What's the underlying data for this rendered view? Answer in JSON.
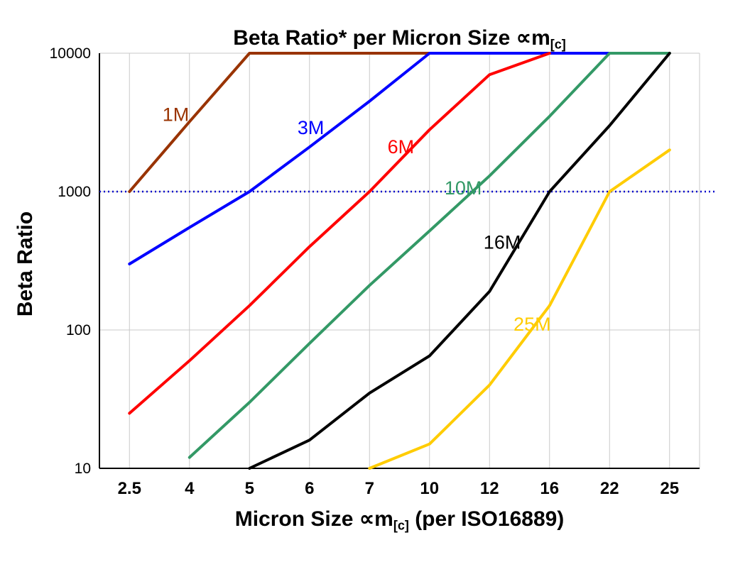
{
  "title": {
    "text_prefix": "Beta Ratio* per Micron Size ",
    "micron_symbol": "∝m",
    "subscript": "[c]"
  },
  "y_axis": {
    "title": "Beta Ratio"
  },
  "x_axis": {
    "title_prefix": "Micron Size ",
    "micron_symbol": "∝m",
    "subscript": "[c]",
    "title_suffix": " (per ISO16889)"
  },
  "chart_data": {
    "type": "line",
    "title": "Beta Ratio* per Micron Size ∝m[c]",
    "xlabel": "Micron Size ∝m[c] (per ISO16889)",
    "ylabel": "Beta Ratio",
    "x_scale": "categorical",
    "y_scale": "log10",
    "ylim": [
      10,
      10000
    ],
    "y_ticks": [
      10,
      100,
      1000,
      10000
    ],
    "grid": true,
    "reference_line": {
      "value": 1000,
      "color": "#0000CC",
      "style": "dotted"
    },
    "categories": [
      "2.5",
      "4",
      "5",
      "6",
      "7",
      "10",
      "12",
      "16",
      "22",
      "25"
    ],
    "series": [
      {
        "name": "1M",
        "color": "#993300",
        "values": [
          1000,
          3200,
          10000,
          10000,
          10000,
          10000,
          null,
          null,
          null,
          null
        ],
        "label": {
          "text": "1M",
          "xi": 0.55,
          "y": 3600
        }
      },
      {
        "name": "3M",
        "color": "#0000FF",
        "values": [
          300,
          550,
          1000,
          2100,
          4500,
          10000,
          10000,
          10000,
          10000,
          null
        ],
        "label": {
          "text": "3M",
          "xi": 2.8,
          "y": 2900
        }
      },
      {
        "name": "6M",
        "color": "#FF0000",
        "values": [
          25,
          60,
          150,
          400,
          1000,
          2800,
          7000,
          10000,
          null,
          null
        ],
        "label": {
          "text": "6M",
          "xi": 4.3,
          "y": 2100
        }
      },
      {
        "name": "10M",
        "color": "#339966",
        "values": [
          null,
          12,
          30,
          80,
          210,
          520,
          1300,
          3500,
          10000,
          10000
        ],
        "label": {
          "text": "10M",
          "xi": 5.25,
          "y": 1060
        }
      },
      {
        "name": "16M",
        "color": "#000000",
        "values": [
          null,
          null,
          10,
          16,
          35,
          65,
          190,
          1000,
          3000,
          10000
        ],
        "label": {
          "text": "16M",
          "xi": 5.9,
          "y": 430
        }
      },
      {
        "name": "25M",
        "color": "#FFCC00",
        "values": [
          null,
          null,
          null,
          null,
          10,
          15,
          40,
          150,
          1000,
          2000
        ],
        "label": {
          "text": "25M",
          "xi": 6.4,
          "y": 110
        }
      }
    ]
  }
}
